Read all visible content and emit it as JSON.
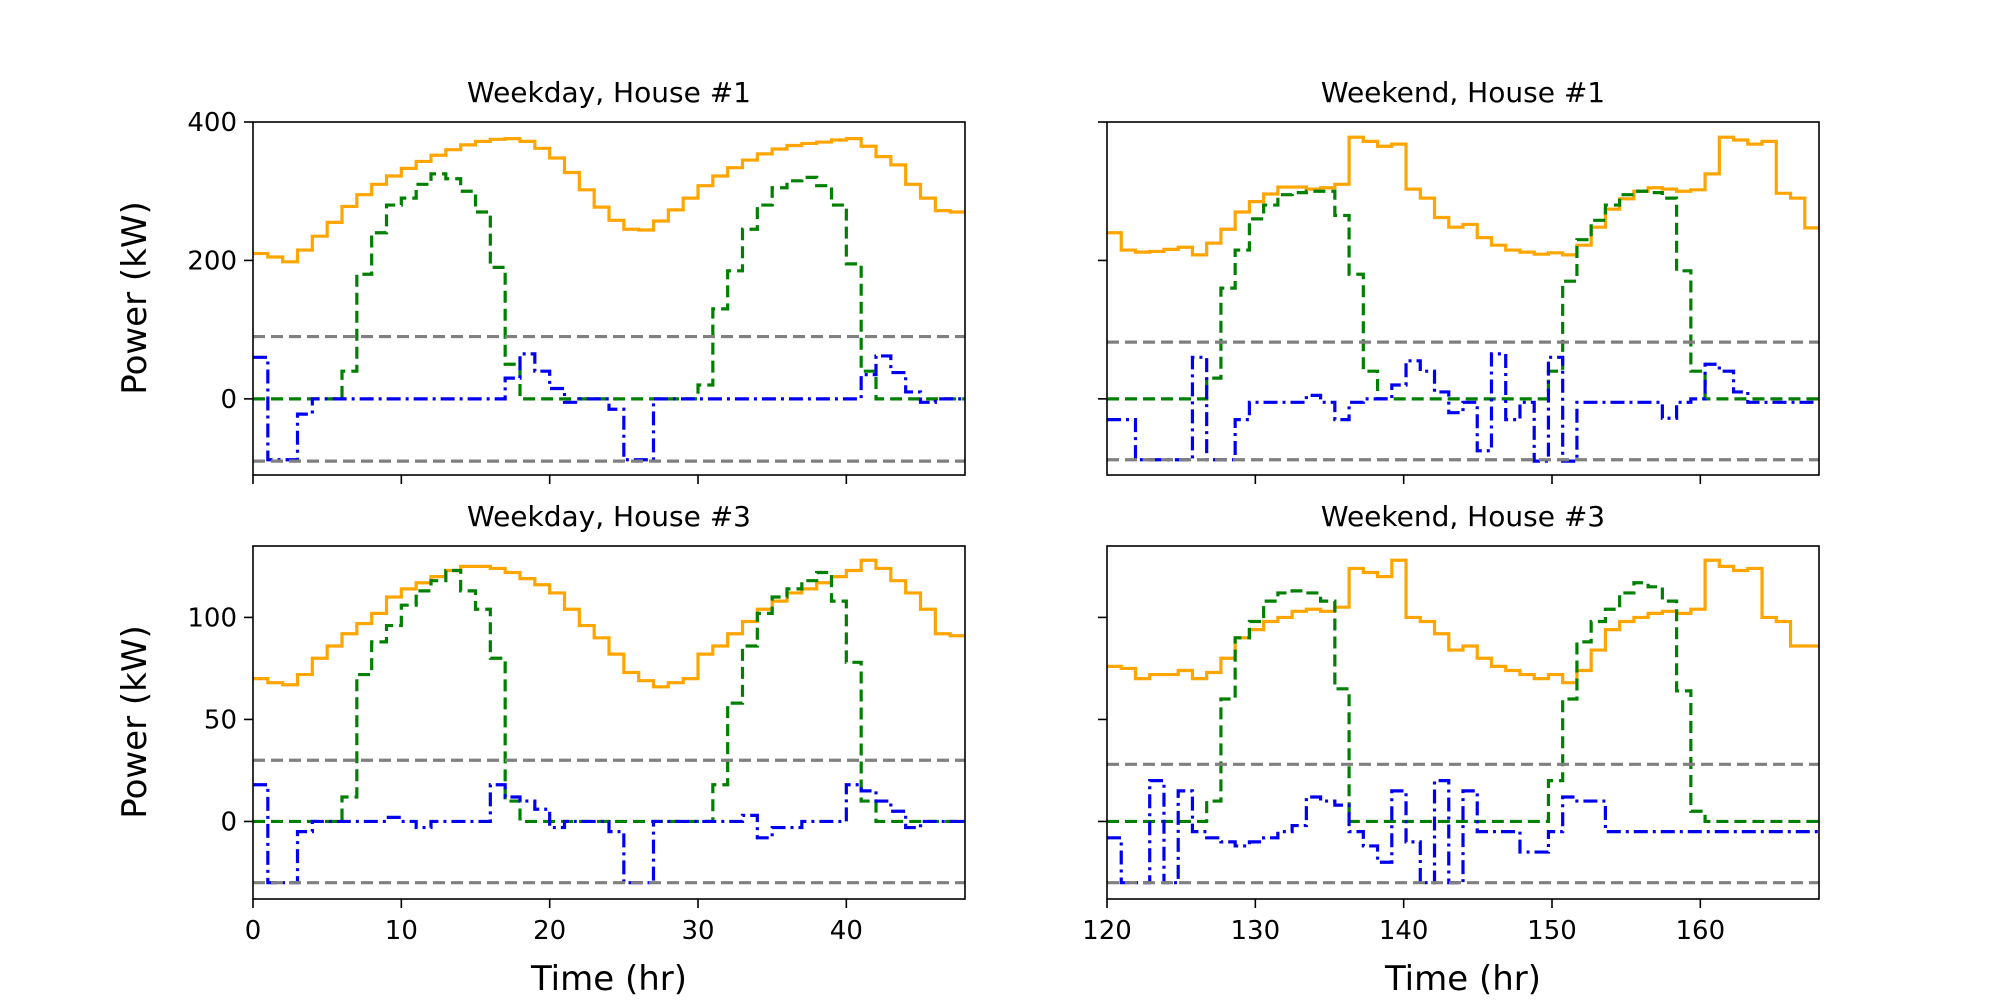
{
  "colors": {
    "demand": "#FFA500",
    "solar": "#008000",
    "battery": "#0000EE",
    "limits": "#808080"
  },
  "chart_data": [
    {
      "type": "line",
      "title": "Weekday, House #1",
      "xlabel": "",
      "ylabel": "Power (kW)",
      "xlim": [
        0,
        48
      ],
      "ylim": [
        -110,
        400
      ],
      "xticks": [
        0,
        10,
        20,
        30,
        40
      ],
      "xtick_labels": [],
      "yticks": [
        0,
        200,
        400
      ],
      "ytick_labels": [
        "0",
        "200",
        "400"
      ],
      "series": [
        {
          "key": "demand",
          "style": "solid",
          "values": [
            210,
            205,
            198,
            215,
            235,
            255,
            278,
            295,
            310,
            322,
            333,
            343,
            352,
            360,
            367,
            372,
            375,
            376,
            372,
            362,
            348,
            327,
            302,
            277,
            258,
            245,
            244,
            257,
            273,
            290,
            308,
            322,
            334,
            345,
            354,
            361,
            366,
            369,
            371,
            374,
            376,
            365,
            350,
            338,
            310,
            290,
            272,
            270
          ]
        },
        {
          "key": "solar",
          "style": "dashed",
          "values": [
            0,
            0,
            0,
            0,
            0,
            0,
            40,
            180,
            240,
            280,
            290,
            310,
            325,
            318,
            300,
            270,
            190,
            50,
            0,
            0,
            0,
            0,
            0,
            0,
            0,
            0,
            0,
            0,
            0,
            0,
            20,
            130,
            185,
            245,
            280,
            305,
            315,
            320,
            308,
            280,
            195,
            40,
            0,
            0,
            0,
            0,
            0,
            0
          ]
        },
        {
          "key": "battery",
          "style": "dashdot",
          "values": [
            60,
            -88,
            -88,
            -22,
            0,
            0,
            0,
            0,
            0,
            0,
            0,
            0,
            0,
            0,
            0,
            0,
            0,
            30,
            65,
            40,
            15,
            -5,
            0,
            0,
            -15,
            -88,
            -88,
            0,
            0,
            0,
            0,
            0,
            0,
            0,
            0,
            0,
            0,
            0,
            0,
            0,
            0,
            35,
            62,
            38,
            10,
            -5,
            0,
            0
          ]
        },
        {
          "key": "limits",
          "style": "dashed",
          "values": [
            90
          ]
        },
        {
          "key": "limits",
          "style": "dashed",
          "values": [
            -90
          ]
        }
      ]
    },
    {
      "type": "line",
      "title": "Weekend, House #1",
      "xlabel": "",
      "ylabel": "",
      "xlim": [
        120,
        168
      ],
      "ylim": [
        -110,
        400
      ],
      "xticks": [
        130,
        140,
        150,
        160
      ],
      "xtick_labels": [],
      "yticks": [
        0,
        200,
        400
      ],
      "ytick_labels": [],
      "series": [
        {
          "key": "demand",
          "style": "solid",
          "values": [
            240,
            215,
            212,
            213,
            216,
            219,
            208,
            225,
            245,
            270,
            285,
            296,
            306,
            306,
            303,
            305,
            310,
            378,
            372,
            365,
            368,
            303,
            290,
            262,
            248,
            252,
            233,
            222,
            215,
            212,
            209,
            211,
            208,
            222,
            248,
            274,
            289,
            300,
            305,
            303,
            300,
            302,
            325,
            378,
            374,
            368,
            372,
            297,
            290,
            247
          ]
        },
        {
          "key": "solar",
          "style": "dashed",
          "values": [
            0,
            0,
            0,
            0,
            0,
            0,
            0,
            30,
            160,
            215,
            260,
            280,
            295,
            298,
            300,
            300,
            265,
            180,
            40,
            0,
            0,
            0,
            0,
            0,
            0,
            0,
            0,
            0,
            0,
            0,
            0,
            40,
            170,
            230,
            258,
            280,
            295,
            300,
            298,
            290,
            185,
            40,
            0,
            0,
            0,
            0,
            0,
            0,
            0,
            0
          ]
        },
        {
          "key": "battery",
          "style": "dashdot",
          "values": [
            -30,
            -30,
            -88,
            -88,
            -88,
            -88,
            60,
            -88,
            -88,
            -30,
            -5,
            -5,
            -5,
            -5,
            5,
            -5,
            -30,
            -5,
            0,
            0,
            20,
            55,
            40,
            10,
            -20,
            -5,
            -75,
            65,
            -30,
            -5,
            -90,
            60,
            -90,
            -5,
            -5,
            -5,
            -5,
            -5,
            -5,
            -28,
            -5,
            0,
            50,
            40,
            10,
            -5,
            -5,
            -5,
            -5,
            -5
          ]
        },
        {
          "key": "limits",
          "style": "dashed",
          "values": [
            82
          ]
        },
        {
          "key": "limits",
          "style": "dashed",
          "values": [
            -88
          ]
        }
      ]
    },
    {
      "type": "line",
      "title": "Weekday, House #3",
      "xlabel": "Time (hr)",
      "ylabel": "Power (kW)",
      "xlim": [
        0,
        48
      ],
      "ylim": [
        -38,
        135
      ],
      "xticks": [
        0,
        10,
        20,
        30,
        40
      ],
      "xtick_labels": [
        "0",
        "10",
        "20",
        "30",
        "40"
      ],
      "yticks": [
        0,
        50,
        100
      ],
      "ytick_labels": [
        "0",
        "50",
        "100"
      ],
      "series": [
        {
          "key": "demand",
          "style": "solid",
          "values": [
            70,
            68,
            67,
            72,
            80,
            86,
            92,
            97,
            102,
            110,
            114,
            117,
            120,
            123,
            125,
            125,
            124,
            122,
            119,
            116,
            112,
            104,
            96,
            90,
            82,
            73,
            69,
            66,
            68,
            70,
            82,
            86,
            92,
            98,
            104,
            108,
            112,
            114,
            117,
            120,
            123,
            128,
            124,
            118,
            112,
            104,
            92,
            91
          ]
        },
        {
          "key": "solar",
          "style": "dashed",
          "values": [
            0,
            0,
            0,
            0,
            0,
            0,
            12,
            72,
            88,
            96,
            106,
            113,
            118,
            123,
            113,
            104,
            80,
            10,
            0,
            0,
            0,
            0,
            0,
            0,
            0,
            0,
            0,
            0,
            0,
            0,
            0,
            18,
            58,
            86,
            102,
            110,
            114,
            118,
            122,
            108,
            78,
            10,
            0,
            0,
            0,
            0,
            0,
            0
          ]
        },
        {
          "key": "battery",
          "style": "dashdot",
          "values": [
            18,
            -30,
            -30,
            -5,
            0,
            0,
            0,
            0,
            0,
            2,
            0,
            -3,
            0,
            0,
            0,
            0,
            18,
            12,
            10,
            6,
            -3,
            0,
            0,
            0,
            -5,
            -30,
            -30,
            0,
            0,
            0,
            0,
            0,
            0,
            3,
            -8,
            -3,
            -3,
            0,
            0,
            0,
            18,
            15,
            10,
            5,
            -3,
            0,
            0,
            0
          ]
        },
        {
          "key": "limits",
          "style": "dashed",
          "values": [
            30
          ]
        },
        {
          "key": "limits",
          "style": "dashed",
          "values": [
            -30
          ]
        }
      ]
    },
    {
      "type": "line",
      "title": "Weekend, House #3",
      "xlabel": "Time (hr)",
      "ylabel": "",
      "xlim": [
        120,
        168
      ],
      "ylim": [
        -38,
        135
      ],
      "xticks": [
        120,
        130,
        140,
        150,
        160
      ],
      "xtick_labels": [
        "120",
        "130",
        "140",
        "150",
        "160"
      ],
      "yticks": [
        0,
        50,
        100
      ],
      "ytick_labels": [],
      "series": [
        {
          "key": "demand",
          "style": "solid",
          "values": [
            76,
            75,
            70,
            72,
            72,
            74,
            70,
            73,
            80,
            90,
            94,
            98,
            100,
            103,
            104,
            103,
            105,
            124,
            122,
            120,
            128,
            100,
            98,
            92,
            84,
            86,
            80,
            76,
            74,
            72,
            70,
            72,
            68,
            74,
            84,
            94,
            98,
            100,
            102,
            103,
            102,
            104,
            128,
            125,
            123,
            124,
            100,
            98,
            86,
            86
          ]
        },
        {
          "key": "solar",
          "style": "dashed",
          "values": [
            0,
            0,
            0,
            0,
            0,
            0,
            0,
            10,
            60,
            90,
            98,
            108,
            112,
            113,
            112,
            108,
            65,
            0,
            0,
            0,
            0,
            0,
            0,
            0,
            0,
            0,
            0,
            0,
            0,
            0,
            0,
            20,
            60,
            88,
            98,
            104,
            112,
            117,
            115,
            108,
            64,
            5,
            0,
            0,
            0,
            0,
            0,
            0,
            0,
            0
          ]
        },
        {
          "key": "battery",
          "style": "dashdot",
          "values": [
            -8,
            -30,
            -30,
            20,
            -30,
            15,
            -5,
            -8,
            -10,
            -12,
            -10,
            -8,
            -5,
            -2,
            12,
            10,
            8,
            -5,
            -12,
            -20,
            15,
            -10,
            -30,
            20,
            -30,
            15,
            -5,
            -5,
            -5,
            -15,
            -15,
            -5,
            12,
            10,
            10,
            -5,
            -5,
            -5,
            -5,
            -5,
            -5,
            -5,
            -5,
            -5,
            -5,
            -5,
            -5,
            -5,
            -5,
            -5
          ]
        },
        {
          "key": "limits",
          "style": "dashed",
          "values": [
            28
          ]
        },
        {
          "key": "limits",
          "style": "dashed",
          "values": [
            -30
          ]
        }
      ]
    }
  ]
}
